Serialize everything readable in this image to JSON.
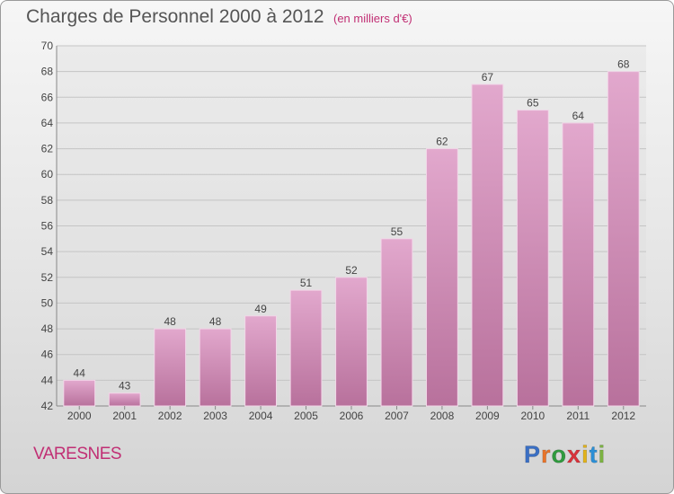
{
  "header": {
    "title": "Charges de Personnel 2000 à 2012",
    "subtitle": "(en milliers d'€)"
  },
  "commune": "VARESNES",
  "logo": {
    "text": "Proxiti",
    "colors": [
      "#3a6fc4",
      "#e8742a",
      "#2f9a3e",
      "#d8323a",
      "#e2b31b",
      "#2b8fd6",
      "#7cb342"
    ]
  },
  "colors": {
    "bar": "#d493bc",
    "accent": "#c12f74"
  },
  "chart_data": {
    "type": "bar",
    "title": "Charges de Personnel 2000 à 2012",
    "subtitle": "(en milliers d'€)",
    "categories": [
      "2000",
      "2001",
      "2002",
      "2003",
      "2004",
      "2005",
      "2006",
      "2007",
      "2008",
      "2009",
      "2010",
      "2011",
      "2012"
    ],
    "values": [
      44,
      43,
      48,
      48,
      49,
      51,
      52,
      55,
      62,
      67,
      65,
      64,
      68
    ],
    "ylim": [
      42,
      70
    ],
    "yticks": [
      42,
      44,
      46,
      48,
      50,
      52,
      54,
      56,
      58,
      60,
      62,
      64,
      66,
      68,
      70
    ],
    "grid": true,
    "xlabel": "",
    "ylabel": ""
  }
}
